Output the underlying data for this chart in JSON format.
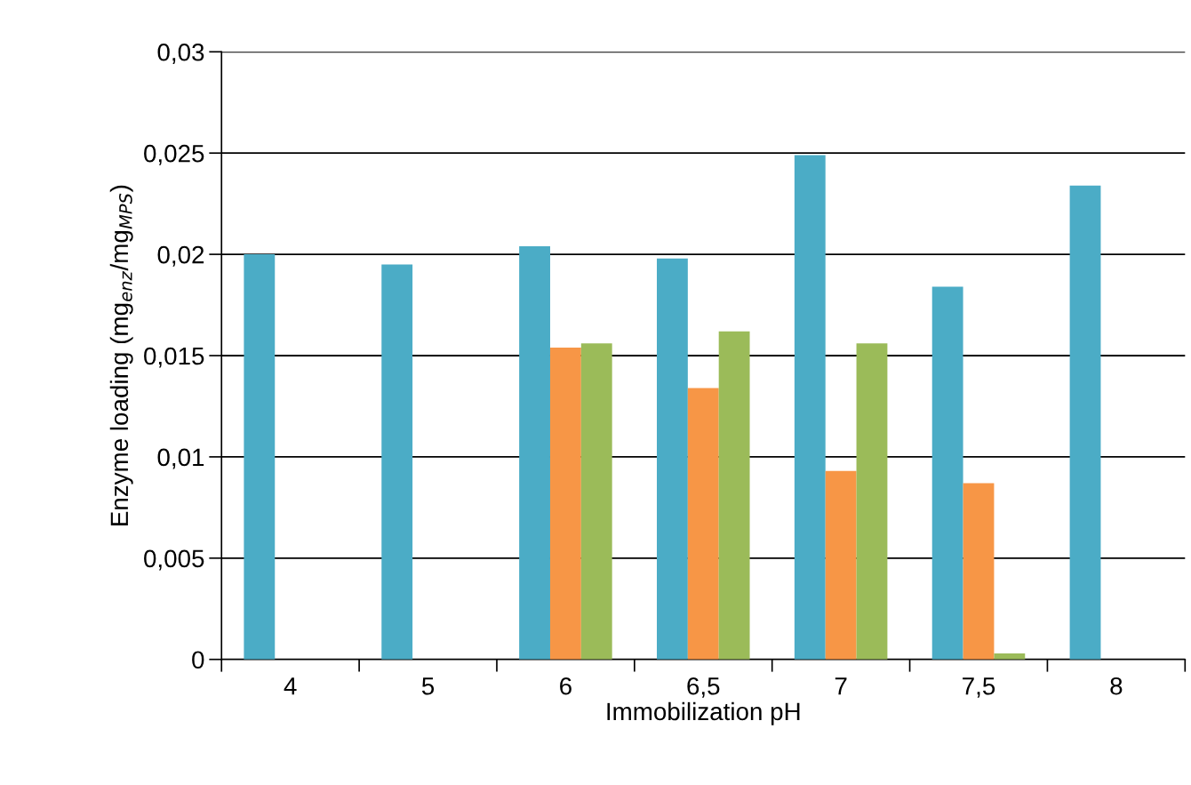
{
  "chart_data": {
    "type": "bar",
    "xlabel": "Immobilization pH",
    "ylabel": "Enzyme loading (mg$_{enz}$/mg$_{MPS}$)",
    "categories": [
      "4",
      "5",
      "6",
      "6,5",
      "7",
      "7,5",
      "8"
    ],
    "series": [
      {
        "color": "#4bacc6",
        "values": [
          0.02,
          0.0195,
          0.0204,
          0.0198,
          0.0249,
          0.0184,
          0.0234
        ]
      },
      {
        "color": "#f79646",
        "values": [
          null,
          null,
          0.0154,
          0.0134,
          0.0093,
          0.0087,
          null
        ]
      },
      {
        "color": "#9bbb59",
        "values": [
          null,
          null,
          0.0156,
          0.0162,
          0.0156,
          0.0003,
          null
        ]
      }
    ],
    "ylim": [
      0,
      0.03
    ],
    "yticks": [
      0,
      {
        "value": 0.005,
        "label": "0,005"
      },
      {
        "value": 0.01,
        "label": "0,01"
      },
      {
        "value": 0.015,
        "label": "0,015"
      },
      {
        "value": 0.02,
        "label": "0,02"
      },
      {
        "value": 0.025,
        "label": "0,025"
      },
      {
        "value": 0.03,
        "label": "0,03"
      }
    ],
    "grid": "y",
    "legend": false
  }
}
